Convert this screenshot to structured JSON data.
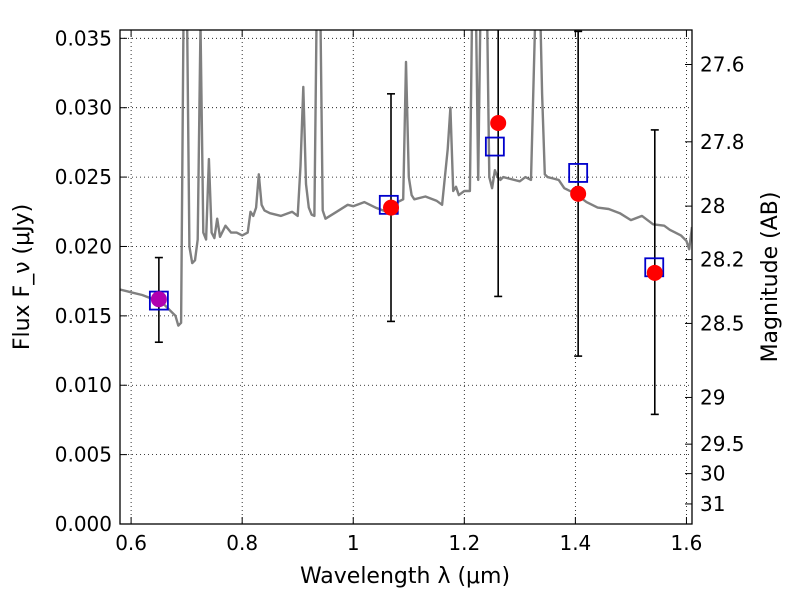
{
  "chart_data": {
    "type": "scatter",
    "xlabel": "Wavelength λ (μm)",
    "ylabel": "Flux F_ν (μJy)",
    "y2label": "Magnitude (AB)",
    "xlim": [
      0.58,
      1.61
    ],
    "ylim": [
      0.0,
      0.0356
    ],
    "grid": true,
    "x_ticks": [
      {
        "value": 0.6,
        "label": "0.6"
      },
      {
        "value": 0.8,
        "label": "0.8"
      },
      {
        "value": 1.0,
        "label": "1"
      },
      {
        "value": 1.2,
        "label": "1.2"
      },
      {
        "value": 1.4,
        "label": "1.4"
      },
      {
        "value": 1.6,
        "label": "1.6"
      }
    ],
    "y_ticks": [
      {
        "value": 0.0,
        "label": "0.000"
      },
      {
        "value": 0.005,
        "label": "0.005"
      },
      {
        "value": 0.01,
        "label": "0.010"
      },
      {
        "value": 0.015,
        "label": "0.015"
      },
      {
        "value": 0.02,
        "label": "0.020"
      },
      {
        "value": 0.025,
        "label": "0.025"
      },
      {
        "value": 0.03,
        "label": "0.030"
      },
      {
        "value": 0.035,
        "label": "0.035"
      }
    ],
    "y2_ticks": [
      {
        "value": 27.6,
        "label": "27.6"
      },
      {
        "value": 27.8,
        "label": "27.8"
      },
      {
        "value": 28.0,
        "label": "28"
      },
      {
        "value": 28.2,
        "label": "28.2"
      },
      {
        "value": 28.5,
        "label": "28.5"
      },
      {
        "value": 29.0,
        "label": "29"
      },
      {
        "value": 29.5,
        "label": "29.5"
      },
      {
        "value": 30.0,
        "label": "30"
      },
      {
        "value": 31.0,
        "label": "31"
      }
    ],
    "series": [
      {
        "kind": "spectrum",
        "color": "#808080",
        "x": [
          0.58,
          0.6,
          0.62,
          0.64,
          0.66,
          0.68,
          0.685,
          0.69,
          0.695,
          0.7,
          0.705,
          0.71,
          0.715,
          0.72,
          0.725,
          0.73,
          0.735,
          0.74,
          0.745,
          0.75,
          0.755,
          0.76,
          0.77,
          0.78,
          0.79,
          0.8,
          0.81,
          0.815,
          0.82,
          0.825,
          0.83,
          0.835,
          0.84,
          0.85,
          0.87,
          0.89,
          0.9,
          0.905,
          0.91,
          0.915,
          0.92,
          0.925,
          0.93,
          0.935,
          0.94,
          0.945,
          0.95,
          0.97,
          0.99,
          1.0,
          1.02,
          1.04,
          1.06,
          1.07,
          1.08,
          1.09,
          1.095,
          1.1,
          1.105,
          1.11,
          1.13,
          1.15,
          1.16,
          1.17,
          1.175,
          1.18,
          1.185,
          1.19,
          1.2,
          1.21,
          1.215,
          1.22,
          1.225,
          1.23,
          1.24,
          1.245,
          1.25,
          1.255,
          1.26,
          1.265,
          1.27,
          1.28,
          1.3,
          1.31,
          1.32,
          1.33,
          1.335,
          1.34,
          1.345,
          1.35,
          1.36,
          1.37,
          1.38,
          1.4,
          1.42,
          1.44,
          1.46,
          1.48,
          1.5,
          1.52,
          1.54,
          1.56,
          1.57,
          1.58,
          1.59,
          1.6,
          1.605,
          1.61
        ],
        "y": [
          0.0169,
          0.0167,
          0.0165,
          0.0162,
          0.0158,
          0.015,
          0.0143,
          0.0145,
          0.04,
          0.04,
          0.02,
          0.0188,
          0.019,
          0.0205,
          0.036,
          0.021,
          0.0205,
          0.0263,
          0.021,
          0.0206,
          0.022,
          0.0207,
          0.0215,
          0.021,
          0.021,
          0.0208,
          0.021,
          0.0225,
          0.0222,
          0.0228,
          0.0252,
          0.023,
          0.0226,
          0.0224,
          0.0222,
          0.0225,
          0.0222,
          0.0258,
          0.0315,
          0.0245,
          0.0228,
          0.0223,
          0.0222,
          0.04,
          0.04,
          0.0226,
          0.022,
          0.0225,
          0.023,
          0.0229,
          0.0232,
          0.0228,
          0.0225,
          0.0226,
          0.0232,
          0.0234,
          0.0333,
          0.025,
          0.0237,
          0.0234,
          0.0236,
          0.0233,
          0.023,
          0.027,
          0.03,
          0.024,
          0.0243,
          0.0237,
          0.024,
          0.024,
          0.04,
          0.04,
          0.0248,
          0.04,
          0.04,
          0.025,
          0.0242,
          0.0255,
          0.025,
          0.0248,
          0.025,
          0.0249,
          0.0247,
          0.025,
          0.0248,
          0.04,
          0.04,
          0.031,
          0.0252,
          0.025,
          0.0249,
          0.0248,
          0.0242,
          0.0238,
          0.0232,
          0.0228,
          0.0227,
          0.0224,
          0.0219,
          0.0222,
          0.0216,
          0.0215,
          0.0212,
          0.021,
          0.0208,
          0.0204,
          0.0198,
          0.0214
        ]
      },
      {
        "kind": "points",
        "marker": "square",
        "color": "#0000cc",
        "x": [
          0.65,
          1.064,
          1.255,
          1.405,
          1.542
        ],
        "y": [
          0.0161,
          0.023,
          0.0272,
          0.0253,
          0.0185
        ]
      },
      {
        "kind": "points",
        "marker": "circle",
        "color": "#ff0000",
        "x": [
          0.65,
          1.068,
          1.261,
          1.405,
          1.543
        ],
        "y": [
          0.0162,
          0.0228,
          0.0289,
          0.0238,
          0.0181
        ],
        "yerr_low": [
          0.0131,
          0.0146,
          0.0164,
          0.0121,
          0.0079
        ],
        "yerr_high": [
          0.0192,
          0.031,
          0.036,
          0.0355,
          0.0284
        ]
      }
    ]
  }
}
